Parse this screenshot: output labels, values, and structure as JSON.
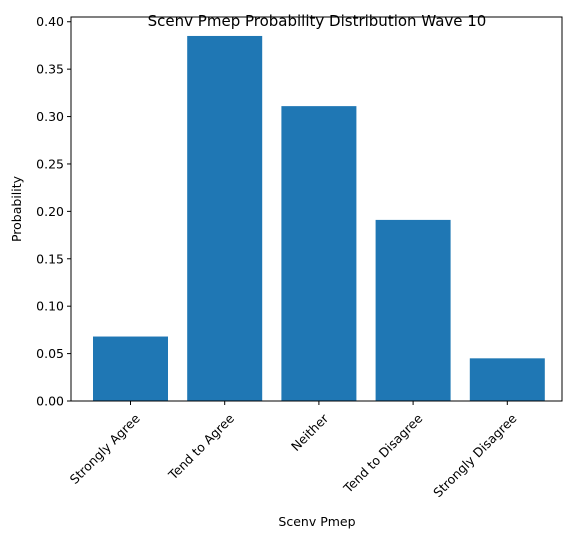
{
  "chart_data": {
    "type": "bar",
    "title": "Scenv Pmep Probability Distribution Wave 10",
    "xlabel": "Scenv Pmep",
    "ylabel": "Probability",
    "categories": [
      "Strongly Agree",
      "Tend to Agree",
      "Neither",
      "Tend to Disagree",
      "Strongly Disagree"
    ],
    "values": [
      0.068,
      0.385,
      0.311,
      0.191,
      0.045
    ],
    "ylim": [
      0,
      0.405
    ],
    "yticks": [
      0.0,
      0.05,
      0.1,
      0.15,
      0.2,
      0.25,
      0.3,
      0.35,
      0.4
    ],
    "ytick_labels": [
      "0.00",
      "0.05",
      "0.10",
      "0.15",
      "0.20",
      "0.25",
      "0.30",
      "0.35",
      "0.40"
    ],
    "grid": false,
    "bar_color": "#1f77b4"
  }
}
